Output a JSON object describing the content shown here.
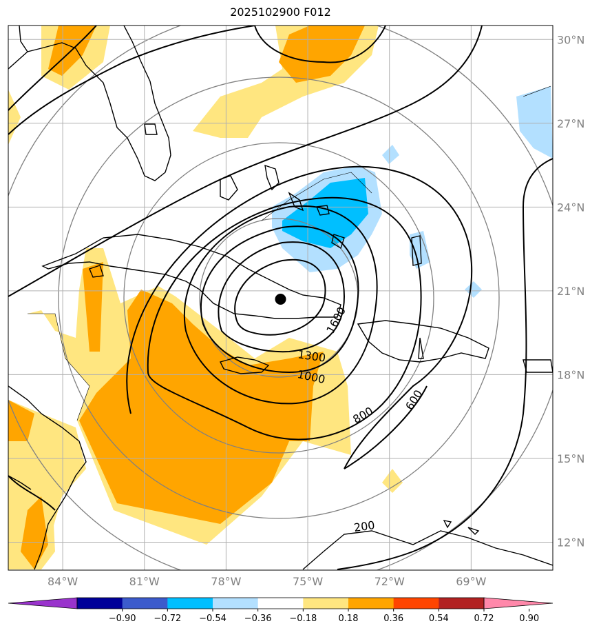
{
  "title": "2025102900 F012",
  "map": {
    "lon_min": -86,
    "lon_max": -66,
    "lat_min": 11,
    "lat_max": 30.5,
    "lon_ticks": [
      "84°W",
      "81°W",
      "78°W",
      "75°W",
      "72°W",
      "69°W"
    ],
    "lat_ticks": [
      "30°N",
      "27°N",
      "24°N",
      "21°N",
      "18°N",
      "15°N",
      "12°N"
    ],
    "storm_center": {
      "lon": -76.0,
      "lat": 20.7
    }
  },
  "contours": {
    "labels": [
      "1600",
      "1300",
      "1000",
      "800",
      "600",
      "200"
    ]
  },
  "colorbar": {
    "colors": [
      "#9933cc",
      "#000099",
      "#3c5bcc",
      "#00bfff",
      "#b3e0ff",
      "#ffffff",
      "#ffe680",
      "#ffa500",
      "#ff4500",
      "#b22222",
      "#ff88aa"
    ],
    "labels": [
      "−0.90",
      "−0.72",
      "−0.54",
      "−0.36",
      "−0.18",
      "0.18",
      "0.36",
      "0.54",
      "0.72",
      "0.90"
    ]
  }
}
